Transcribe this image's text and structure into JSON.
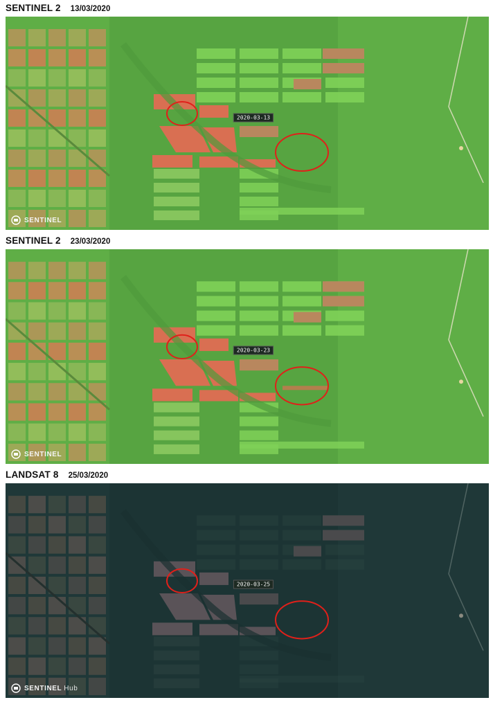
{
  "panels": [
    {
      "sensor": "SENTINEL 2",
      "date": "13/03/2020",
      "stamp": "2020-03-13",
      "logo_text": "SENTINEL",
      "logo_suffix": "",
      "palette": {
        "base": "#5fae46",
        "dark": "#4f9a3c",
        "field_green": "#7fd158",
        "field_pale": "#9ad36a",
        "burn": "#d96f52",
        "burn_dim": "#b8875e",
        "ellipse": "#e0201a"
      }
    },
    {
      "sensor": "SENTINEL 2",
      "date": "23/03/2020",
      "stamp": "2020-03-23",
      "logo_text": "SENTINEL",
      "logo_suffix": "",
      "palette": {
        "base": "#5fae46",
        "dark": "#4f9a3c",
        "field_green": "#7fd158",
        "field_pale": "#9ad36a",
        "burn": "#d96f52",
        "burn_dim": "#b8875e",
        "ellipse": "#e0201a"
      }
    },
    {
      "sensor": "LANDSAT 8",
      "date": "25/03/2020",
      "stamp": "2020-03-25",
      "logo_text": "SENTINEL",
      "logo_suffix": "Hub",
      "palette": {
        "base": "#1f3838",
        "dark": "#193030",
        "field_green": "#2f4a44",
        "field_pale": "#3a4e4c",
        "burn": "#5a5358",
        "burn_dim": "#4a4a4c",
        "ellipse": "#e0201a"
      }
    }
  ]
}
